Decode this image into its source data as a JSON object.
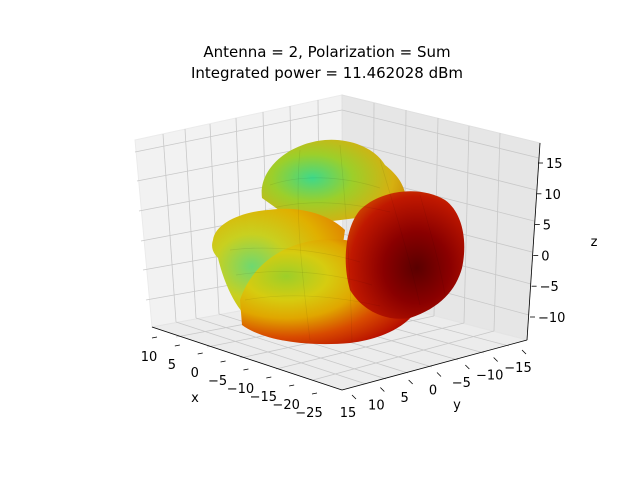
{
  "chart_data": {
    "type": "surface3d",
    "title_lines": [
      "Antenna = 2, Polarization = Sum",
      "Integrated power = 11.462028 dBm"
    ],
    "xlabel": "x",
    "ylabel": "y",
    "zlabel": "z",
    "x_ticks": [
      "10",
      "5",
      "0",
      "−5",
      "−10",
      "−15",
      "−20",
      "−25"
    ],
    "y_ticks": [
      "15",
      "10",
      "5",
      "0",
      "−5",
      "−10",
      "−15"
    ],
    "z_ticks": [
      "15",
      "10",
      "5",
      "0",
      "−5",
      "−10"
    ],
    "xlim": [
      -25,
      10
    ],
    "ylim": [
      -15,
      15
    ],
    "zlim": [
      -12,
      17
    ],
    "grid": true,
    "colormap": [
      "#3fd98a",
      "#9ccf2a",
      "#d6cc10",
      "#e0a600",
      "#d84a00",
      "#b81000",
      "#6a0000"
    ]
  }
}
